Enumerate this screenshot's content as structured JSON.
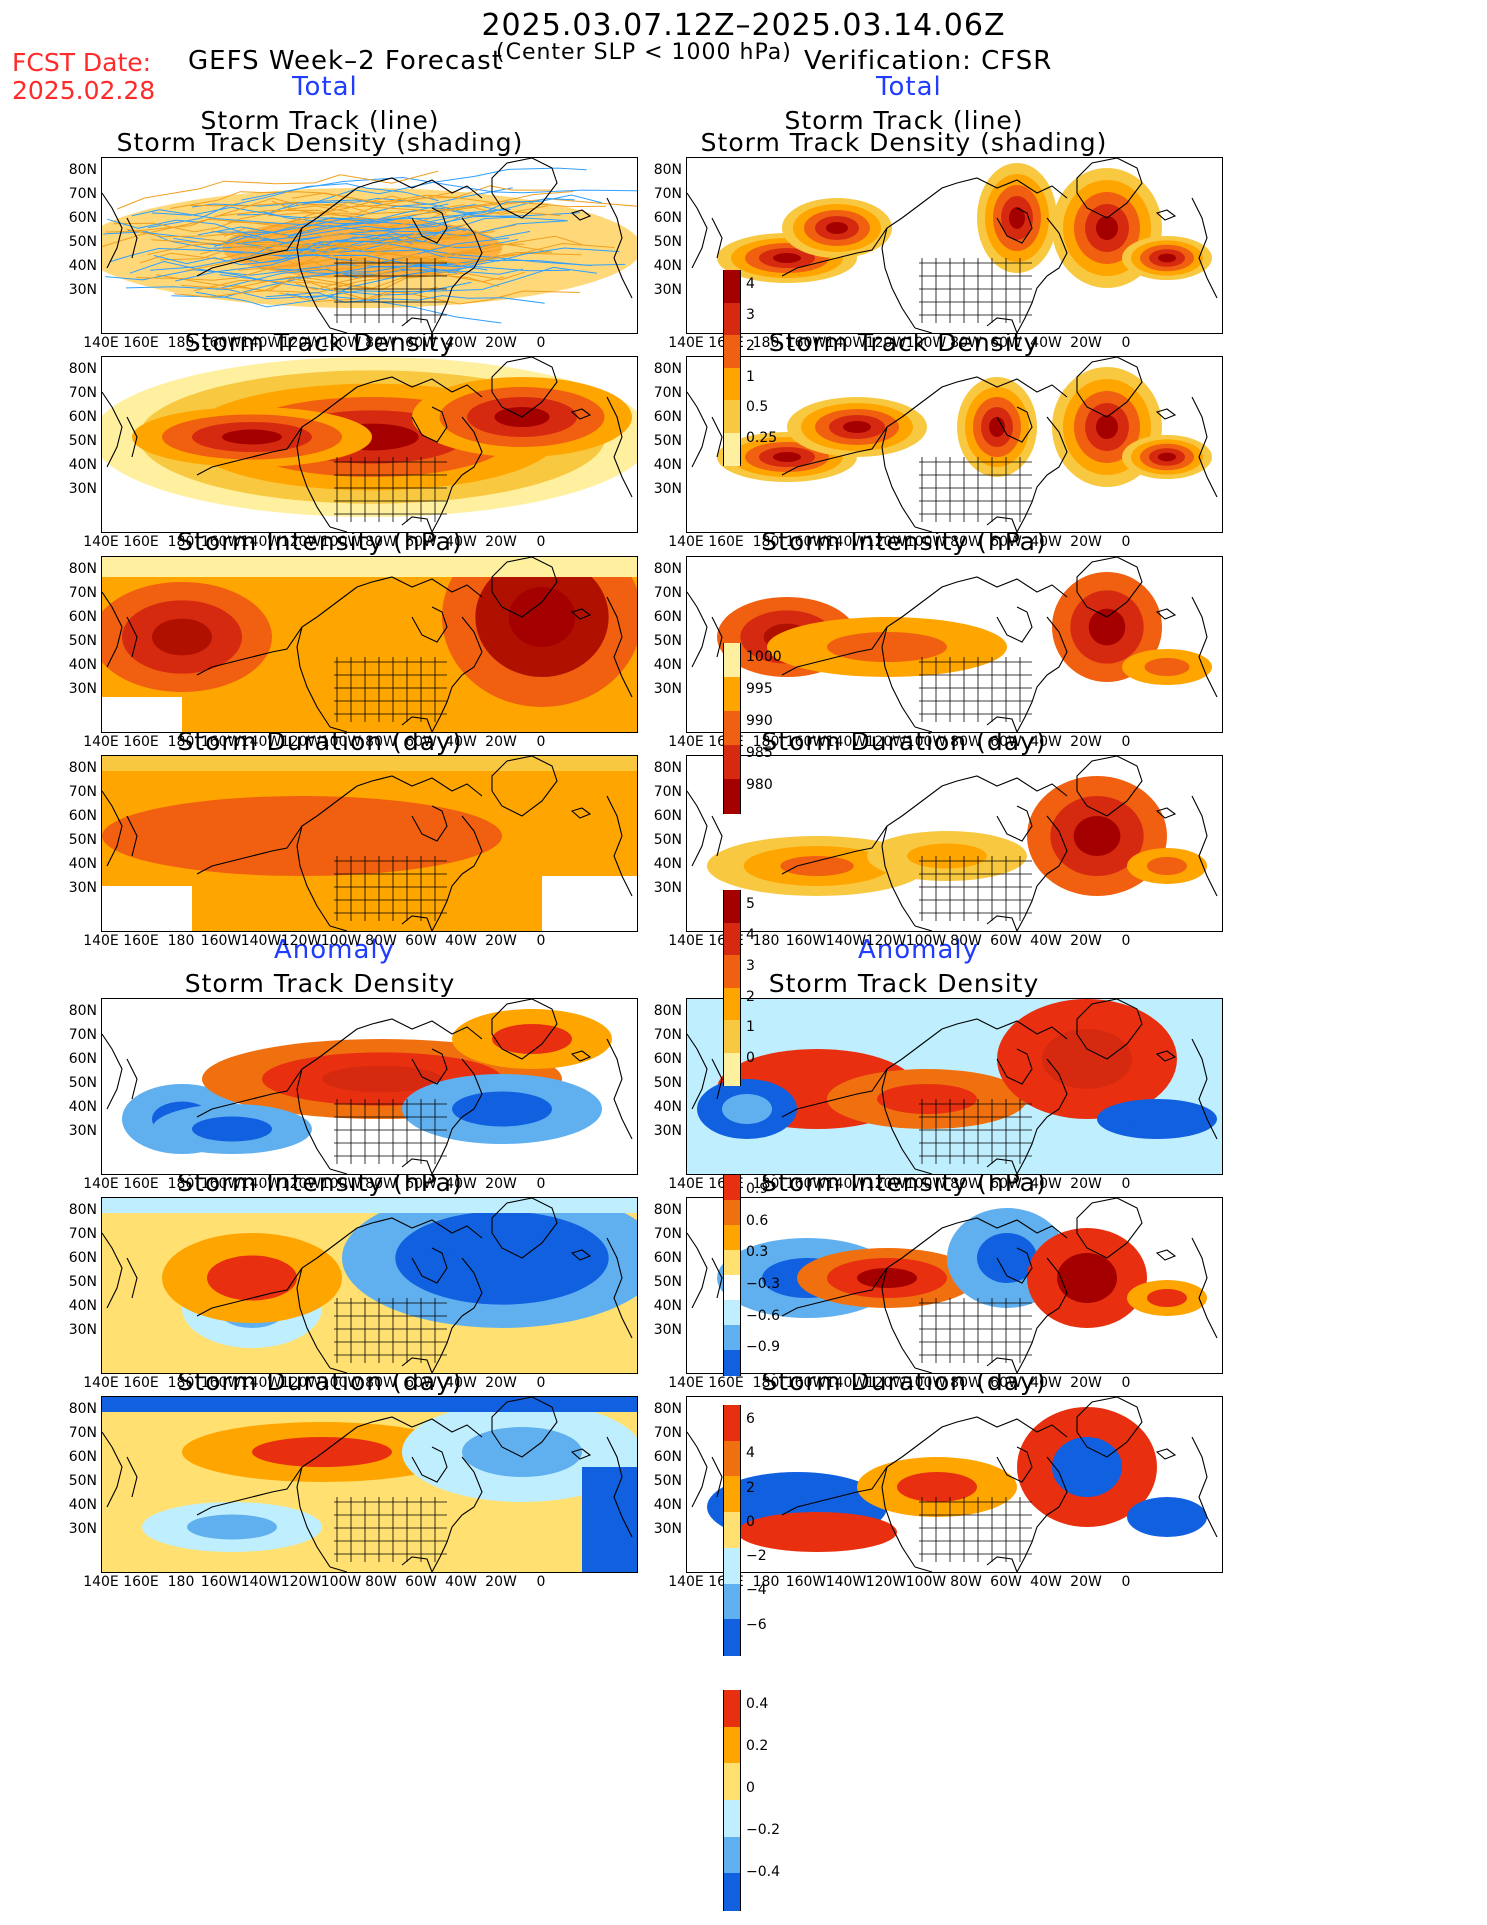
{
  "header": {
    "main_title": "2025.03.07.12Z–2025.03.14.06Z",
    "fcst_label": "FCST Date:",
    "fcst_date": "2025.02.28",
    "left_title": "GEFS Week–2 Forecast",
    "center_note": "(Center SLP < 1000 hPa)",
    "right_title": "Verification: CFSR"
  },
  "sections": {
    "total_left": "Total",
    "total_right": "Total",
    "anomaly_left": "Anomaly",
    "anomaly_right": "Anomaly"
  },
  "panel_titles": {
    "track_line": "Storm Track (line)",
    "track_shading": "Storm Track Density (shading)",
    "density": "Storm Track Density",
    "intensity": "Storm Intensity (hPa)",
    "duration": "Storm Duration (day)"
  },
  "axes": {
    "lat_labels": [
      "80N",
      "70N",
      "60N",
      "50N",
      "40N",
      "30N"
    ],
    "lon_labels": [
      "140E",
      "160E",
      "180",
      "160W",
      "140W",
      "120W",
      "100W",
      "80W",
      "60W",
      "40W",
      "20W",
      "0"
    ]
  },
  "colorbars": {
    "density_total": {
      "labels": [
        "4",
        "3",
        "2",
        "1",
        "0.5",
        "0.25"
      ],
      "colors": [
        "#a50000",
        "#d62a10",
        "#f06010",
        "#ffa500",
        "#f8c840",
        "#fff0a0"
      ]
    },
    "intensity_total": {
      "labels": [
        "1000",
        "995",
        "990",
        "985",
        "980"
      ],
      "colors": [
        "#fff0a0",
        "#ffa500",
        "#f06010",
        "#d62a10",
        "#a50000"
      ]
    },
    "duration_total": {
      "labels": [
        "5",
        "4",
        "3",
        "2",
        "1",
        "0"
      ],
      "colors": [
        "#a50000",
        "#d62a10",
        "#f06010",
        "#ffa500",
        "#f8c840",
        "#fff0a0"
      ]
    },
    "density_anom": {
      "labels": [
        "0.9",
        "0.6",
        "0.3",
        "−0.3",
        "−0.6",
        "−0.9"
      ],
      "colors": [
        "#e83010",
        "#f07010",
        "#ffa500",
        "#ffe070",
        "#ffffff",
        "#bfefff",
        "#60b0f0",
        "#1060e0"
      ]
    },
    "intensity_anom": {
      "labels": [
        "6",
        "4",
        "2",
        "0",
        "−2",
        "−4",
        "−6"
      ],
      "colors": [
        "#e83010",
        "#f07010",
        "#ffa500",
        "#ffe070",
        "#bfefff",
        "#60b0f0",
        "#1060e0"
      ]
    },
    "duration_anom": {
      "labels": [
        "0.4",
        "0.2",
        "0",
        "−0.2",
        "−0.4"
      ],
      "colors": [
        "#e83010",
        "#ffa500",
        "#ffe070",
        "#bfefff",
        "#60b0f0",
        "#1060e0"
      ]
    }
  }
}
